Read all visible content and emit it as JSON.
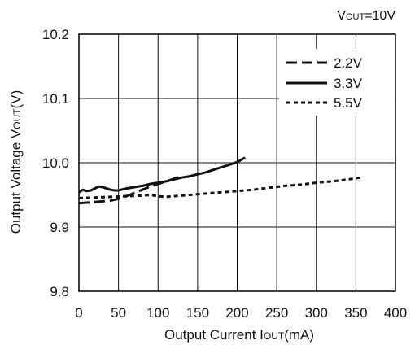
{
  "chart_data": {
    "type": "line",
    "title": "",
    "condition": {
      "main": "V",
      "sub": "OUT",
      "tail": "=10V"
    },
    "xlabel": {
      "main": "Output Current I",
      "sub": "OUT",
      "tail": "(mA)"
    },
    "ylabel": {
      "main": "Output Voltage V",
      "sub": "OUT",
      "tail": "(V)"
    },
    "xlim": [
      0,
      400
    ],
    "ylim": [
      9.8,
      10.2
    ],
    "xticks": [
      "0",
      "50",
      "100",
      "150",
      "200",
      "250",
      "300",
      "350",
      "400"
    ],
    "yticks": [
      "9.8",
      "9.9",
      "10.0",
      "10.1",
      "10.2"
    ],
    "grid": true,
    "legend_position": "top-right",
    "series": [
      {
        "name": "2.2V",
        "style": "dashed",
        "color": "#111111",
        "x": [
          0,
          10,
          20,
          30,
          40,
          50,
          60,
          70,
          80,
          90,
          100,
          110,
          120,
          126
        ],
        "y": [
          9.937,
          9.938,
          9.939,
          9.94,
          9.941,
          9.944,
          9.948,
          9.953,
          9.958,
          9.963,
          9.967,
          9.971,
          9.975,
          9.978
        ]
      },
      {
        "name": "3.3V",
        "style": "solid",
        "color": "#111111",
        "x": [
          0,
          5,
          10,
          15,
          20,
          25,
          30,
          35,
          40,
          45,
          50,
          60,
          70,
          80,
          90,
          100,
          110,
          120,
          130,
          140,
          150,
          160,
          170,
          180,
          190,
          200,
          210
        ],
        "y": [
          9.954,
          9.958,
          9.956,
          9.957,
          9.96,
          9.963,
          9.962,
          9.96,
          9.958,
          9.957,
          9.957,
          9.96,
          9.962,
          9.964,
          9.967,
          9.969,
          9.971,
          9.974,
          9.977,
          9.979,
          9.982,
          9.985,
          9.989,
          9.993,
          9.997,
          10.001,
          10.008
        ]
      },
      {
        "name": "5.5V",
        "style": "dotted",
        "color": "#111111",
        "x": [
          0,
          20,
          40,
          60,
          80,
          90,
          100,
          110,
          120,
          140,
          160,
          180,
          200,
          220,
          240,
          260,
          280,
          300,
          320,
          340,
          356
        ],
        "y": [
          9.945,
          9.946,
          9.947,
          9.948,
          9.949,
          9.95,
          9.948,
          9.947,
          9.948,
          9.95,
          9.952,
          9.954,
          9.956,
          9.958,
          9.961,
          9.964,
          9.966,
          9.969,
          9.971,
          9.974,
          9.977
        ]
      }
    ]
  }
}
